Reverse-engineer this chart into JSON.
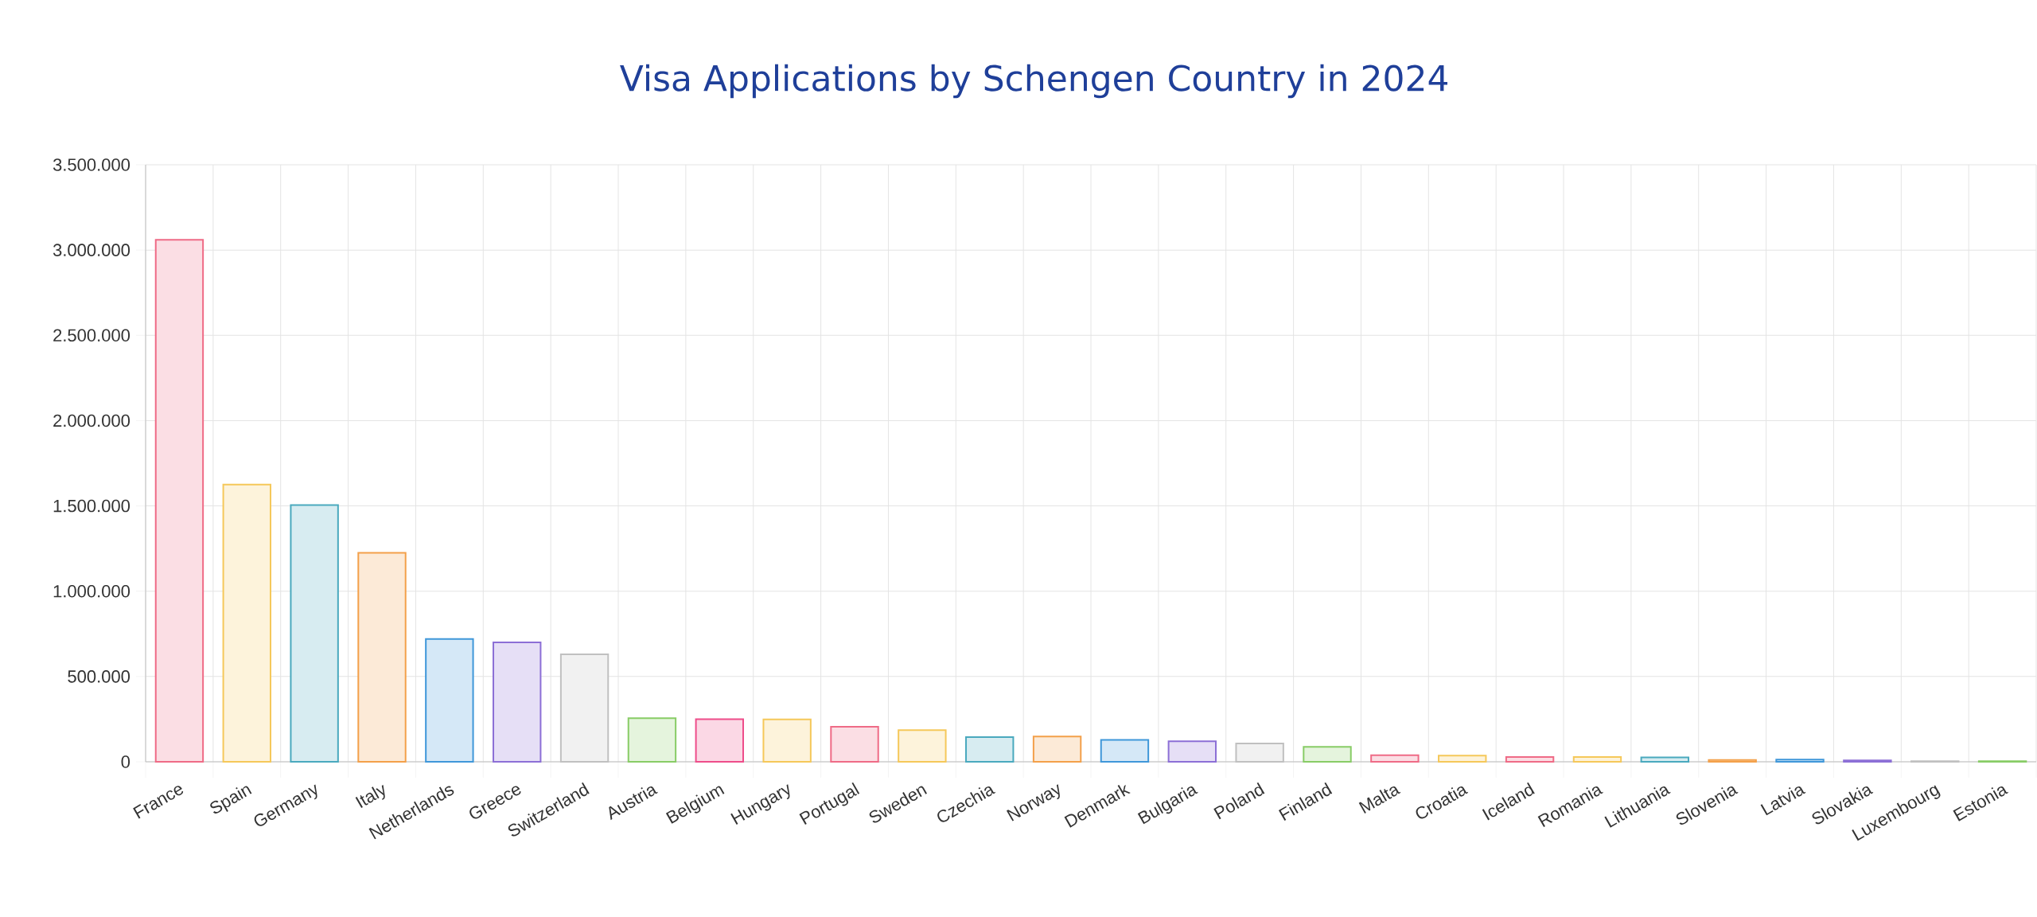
{
  "chart_data": {
    "type": "bar",
    "title": "Visa Applications by Schengen Country in 2024",
    "categories": [
      "France",
      "Spain",
      "Germany",
      "Italy",
      "Netherlands",
      "Greece",
      "Switzerland",
      "Austria",
      "Belgium",
      "Hungary",
      "Portugal",
      "Sweden",
      "Czechia",
      "Norway",
      "Denmark",
      "Bulgaria",
      "Poland",
      "Finland",
      "Malta",
      "Croatia",
      "Iceland",
      "Romania",
      "Lithuania",
      "Slovenia",
      "Latvia",
      "Slovakia",
      "Luxembourg",
      "Estonia"
    ],
    "values": [
      3060000,
      1625000,
      1505000,
      1225000,
      720000,
      700000,
      630000,
      255000,
      250000,
      248000,
      205000,
      186000,
      145000,
      148000,
      128000,
      120000,
      107000,
      87000,
      38000,
      36000,
      28000,
      28000,
      26000,
      10000,
      13000,
      8000,
      3000,
      4000
    ],
    "colors": [
      "#ef6b86",
      "#f5c85a",
      "#4aa9be",
      "#f3a04a",
      "#3f97d9",
      "#8c6fd6",
      "#c0c0c0",
      "#88cc66",
      "#ee4d8a",
      "#f5c85a",
      "#ef6b86",
      "#f5c85a",
      "#4aa9be",
      "#f3a04a",
      "#3f97d9",
      "#8c6fd6",
      "#c0c0c0",
      "#88cc66",
      "#ef6b86",
      "#f5c85a",
      "#ef6b86",
      "#f5c85a",
      "#4aa9be",
      "#f3a04a",
      "#3f97d9",
      "#8c6fd6",
      "#c0c0c0",
      "#88cc66"
    ],
    "ylim": [
      0,
      3500000
    ],
    "yticks": [
      0,
      {
        "value": 500000,
        "label": "500.000"
      },
      {
        "value": 1000000,
        "label": "1.000.000"
      },
      {
        "value": 1500000,
        "label": "1.500.000"
      },
      {
        "value": 2000000,
        "label": "2.000.000"
      },
      {
        "value": 2500000,
        "label": "2.500.000"
      },
      {
        "value": 3000000,
        "label": "3.000.000"
      },
      {
        "value": 3500000,
        "label": "3.500.000"
      }
    ],
    "grid": true
  }
}
